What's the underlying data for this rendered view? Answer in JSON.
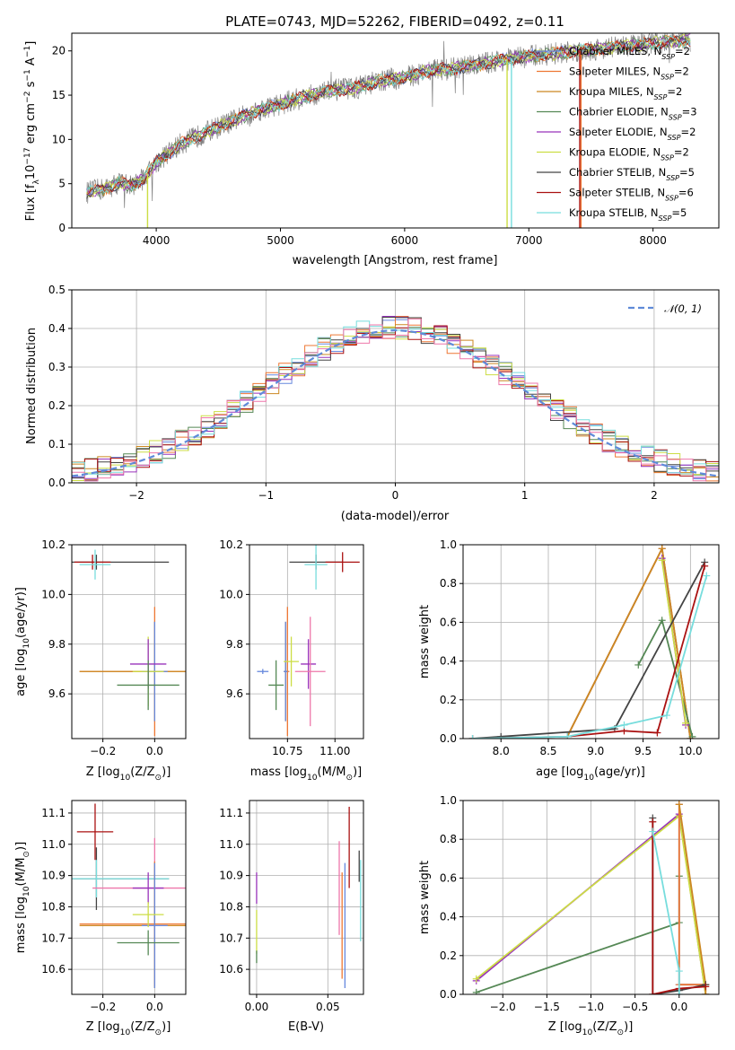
{
  "palette": {
    "Chabrier MILES": "#6688dd",
    "Salpeter MILES": "#ee7733",
    "Kroupa MILES": "#cc8822",
    "Chabrier ELODIE": "#558855",
    "Salpeter ELODIE": "#9933bb",
    "Kroupa ELODIE": "#ccdd44",
    "Chabrier STELIB": "#444444",
    "Salpeter STELIB": "#aa1111",
    "Kroupa STELIB": "#77dddd",
    "data": "#808080",
    "normal": "#5f8ad8",
    "pink": "#ee77aa"
  },
  "chart_data": [
    {
      "id": "spectrum",
      "type": "line",
      "title": "PLATE=0743, MJD=52262, FIBERID=0492, z=0.11",
      "xlabel": "wavelength [Angstrom, rest frame]",
      "ylabel_main": "Flux [f",
      "ylabel_sub": "λ",
      "ylabel_mid": "10",
      "ylabel_sup": "−17",
      "ylabel_rest": " erg cm",
      "ylabel_sup2": "−2",
      "ylabel_rest2": " s",
      "ylabel_sup3": "−1",
      "ylabel_rest3": " A",
      "ylabel_sup4": "−1",
      "ylabel_end": "]",
      "xlim": [
        3320,
        8530
      ],
      "ylim": [
        0,
        22
      ],
      "xticks": [
        4000,
        5000,
        6000,
        7000,
        8000
      ],
      "yticks": [
        0,
        5,
        10,
        15,
        20
      ],
      "continuum": [
        [
          3440,
          4.0
        ],
        [
          3600,
          4.5
        ],
        [
          3700,
          5.1
        ],
        [
          3800,
          4.8
        ],
        [
          3900,
          5.6
        ],
        [
          4000,
          7.4
        ],
        [
          4200,
          9.5
        ],
        [
          4400,
          10.8
        ],
        [
          4600,
          12.0
        ],
        [
          4800,
          13.2
        ],
        [
          5000,
          14.0
        ],
        [
          5200,
          14.8
        ],
        [
          5400,
          15.5
        ],
        [
          5600,
          15.8
        ],
        [
          5800,
          16.6
        ],
        [
          6000,
          17.0
        ],
        [
          6200,
          17.8
        ],
        [
          6400,
          18.0
        ],
        [
          6600,
          18.5
        ],
        [
          6800,
          19.0
        ],
        [
          7000,
          19.4
        ],
        [
          7200,
          19.7
        ],
        [
          7400,
          20.0
        ],
        [
          7600,
          20.3
        ],
        [
          7800,
          20.6
        ],
        [
          8000,
          20.9
        ],
        [
          8300,
          21.2
        ]
      ],
      "legend": [
        {
          "name": "Chabrier MILES",
          "ssp": "2"
        },
        {
          "name": "Salpeter MILES",
          "ssp": "2"
        },
        {
          "name": "Kroupa MILES",
          "ssp": "2"
        },
        {
          "name": "Chabrier ELODIE",
          "ssp": "3"
        },
        {
          "name": "Salpeter ELODIE",
          "ssp": "2"
        },
        {
          "name": "Kroupa ELODIE",
          "ssp": "2"
        },
        {
          "name": "Chabrier STELIB",
          "ssp": "5"
        },
        {
          "name": "Salpeter STELIB",
          "ssp": "6"
        },
        {
          "name": "Kroupa STELIB",
          "ssp": "5"
        }
      ],
      "legend_prefix": "N",
      "legend_sub": "SSP",
      "legend_placement": "upper-right"
    },
    {
      "id": "residuals",
      "type": "histogram",
      "xlabel": "(data-model)/error",
      "ylabel": "Normed distribution",
      "xlim": [
        -2.5,
        2.5
      ],
      "ylim": [
        0,
        0.5
      ],
      "xticks": [
        -2,
        -1,
        0,
        1,
        2
      ],
      "xticklabels": [
        "−2",
        "−1",
        "0",
        "1",
        "2"
      ],
      "yticks": [
        0.0,
        0.1,
        0.2,
        0.3,
        0.4,
        0.5
      ],
      "yticklabels": [
        "0.0",
        "0.1",
        "0.2",
        "0.3",
        "0.4",
        "0.5"
      ],
      "bin_width": 0.1,
      "bin_start": -2.5,
      "density_peak": 0.395,
      "density_sigma": 1.0,
      "legend": "𝒩(0, 1)",
      "grid": true
    },
    {
      "id": "age_vs_Z",
      "type": "errorbar",
      "xlabel": "Z [log",
      "xlabel_sub": "10",
      "xlabel_rest": "(Z/Z",
      "xlabel_sub2": "⊙",
      "xlabel_end": ")]",
      "ylabel": "age  [log",
      "ylabel_sub": "10",
      "ylabel_rest": "(age/yr)]",
      "xlim": [
        -0.32,
        0.12
      ],
      "ylim": [
        9.42,
        10.2
      ],
      "xticks": [
        -0.2,
        0.0
      ],
      "xticklabels": [
        "−0.2",
        "0.0"
      ],
      "yticks": [
        9.6,
        9.8,
        10.0,
        10.2
      ],
      "yticklabels": [
        "9.6",
        "9.8",
        "10.0",
        "10.2"
      ],
      "points": [
        {
          "series": "Chabrier STELIB",
          "x": -0.225,
          "xerr": 0.28,
          "y": 10.13,
          "yerr": 0.03
        },
        {
          "series": "Salpeter STELIB",
          "x": -0.24,
          "xerr": 0.07,
          "y": 10.13,
          "yerr": 0.03
        },
        {
          "series": "Kroupa STELIB",
          "x": -0.23,
          "xerr": 0.06,
          "y": 10.12,
          "yerr": 0.06
        },
        {
          "series": "Salpeter MILES",
          "x": 0.0,
          "xerr": 0.29,
          "y": 9.69,
          "yerr": 0.26
        },
        {
          "series": "Kroupa MILES",
          "x": 0.0,
          "xerr": 0.29,
          "y": 9.69,
          "yerr": 0.2
        },
        {
          "series": "Chabrier MILES",
          "x": 0.0,
          "xerr": 0.05,
          "y": 9.69,
          "yerr": 0.2
        },
        {
          "series": "Kroupa ELODIE",
          "x": -0.025,
          "xerr": 0.06,
          "y": 9.69,
          "yerr": 0.14
        },
        {
          "series": "Salpeter ELODIE",
          "x": -0.025,
          "xerr": 0.07,
          "y": 9.72,
          "yerr": 0.1
        },
        {
          "series": "Chabrier ELODIE",
          "x": -0.025,
          "xerr": 0.12,
          "y": 9.635,
          "yerr": 0.1
        }
      ]
    },
    {
      "id": "age_vs_mass",
      "type": "errorbar",
      "xlabel": "mass [log",
      "xlabel_sub": "10",
      "xlabel_rest": "(M/M",
      "xlabel_sub2": "⊙",
      "xlabel_end": ")]",
      "xlim": [
        10.55,
        11.15
      ],
      "ylim": [
        9.42,
        10.2
      ],
      "xticks": [
        10.75,
        11.0
      ],
      "xticklabels": [
        "10.75",
        "11.00"
      ],
      "yticks": [
        9.6,
        9.8,
        10.0,
        10.2
      ],
      "yticklabels": [
        "9.6",
        "9.8",
        "10.0",
        "10.2"
      ],
      "points": [
        {
          "series": "Chabrier STELIB",
          "x": 10.9,
          "xerr": 0.14,
          "y": 10.13,
          "yerr": 0.03
        },
        {
          "series": "Salpeter STELIB",
          "x": 11.04,
          "xerr": 0.09,
          "y": 10.13,
          "yerr": 0.04
        },
        {
          "series": "Kroupa STELIB",
          "x": 10.9,
          "xerr": 0.06,
          "y": 10.12,
          "yerr": 0.1
        },
        {
          "series": "Salpeter MILES",
          "x": 10.75,
          "xerr": 0.01,
          "y": 9.69,
          "yerr": 0.26
        },
        {
          "series": "Kroupa MILES",
          "x": 10.74,
          "xerr": 0.01,
          "y": 9.69,
          "yerr": 0.2
        },
        {
          "series": "Chabrier MILES",
          "x": 10.74,
          "xerr": 0.01,
          "y": 9.69,
          "yerr": 0.2
        },
        {
          "series": "Kroupa ELODIE",
          "x": 10.77,
          "xerr": 0.04,
          "y": 9.73,
          "yerr": 0.1
        },
        {
          "series": "Salpeter ELODIE",
          "x": 10.86,
          "xerr": 0.04,
          "y": 9.72,
          "yerr": 0.1
        },
        {
          "series": "Chabrier ELODIE",
          "x": 10.69,
          "xerr": 0.04,
          "y": 9.635,
          "yerr": 0.1
        },
        {
          "series": "pink",
          "x": 10.87,
          "xerr": 0.08,
          "y": 9.69,
          "yerr": 0.22
        },
        {
          "series": "Chabrier MILES",
          "x": 10.62,
          "xerr": 0.03,
          "y": 9.69,
          "yerr": 0.01
        }
      ]
    },
    {
      "id": "mass_weight_vs_age",
      "type": "line",
      "xlabel": "age  [log",
      "xlabel_sub": "10",
      "xlabel_rest": "(age/yr)]",
      "ylabel": "mass weight",
      "xlim": [
        7.6,
        10.3
      ],
      "ylim": [
        0,
        1
      ],
      "xticks": [
        8.0,
        8.5,
        9.0,
        9.5,
        10.0
      ],
      "xticklabels": [
        "8.0",
        "8.5",
        "9.0",
        "9.5",
        "10.0"
      ],
      "yticks": [
        0.0,
        0.2,
        0.4,
        0.6,
        0.8,
        1.0
      ],
      "yticklabels": [
        "0.0",
        "0.2",
        "0.4",
        "0.6",
        "0.8",
        "1.0"
      ],
      "grid": true,
      "series": [
        {
          "name": "Chabrier MILES",
          "x": [
            8.7,
            9.7,
            10.0
          ],
          "y": [
            0.01,
            0.98,
            0.0
          ]
        },
        {
          "name": "Salpeter MILES",
          "x": [
            8.7,
            9.7,
            10.0
          ],
          "y": [
            0.01,
            0.98,
            0.0
          ]
        },
        {
          "name": "Kroupa MILES",
          "x": [
            8.7,
            9.7,
            10.0
          ],
          "y": [
            0.01,
            0.98,
            0.0
          ]
        },
        {
          "name": "Chabrier ELODIE",
          "x": [
            9.45,
            9.7,
            10.02
          ],
          "y": [
            0.38,
            0.61,
            0.01
          ]
        },
        {
          "name": "Salpeter ELODIE",
          "x": [
            9.7,
            9.95
          ],
          "y": [
            0.93,
            0.07
          ]
        },
        {
          "name": "Kroupa ELODIE",
          "x": [
            9.7,
            9.95
          ],
          "y": [
            0.92,
            0.08
          ]
        },
        {
          "name": "Chabrier STELIB",
          "x": [
            7.7,
            8.0,
            9.2,
            10.15
          ],
          "y": [
            0.0,
            0.01,
            0.05,
            0.91
          ]
        },
        {
          "name": "Salpeter STELIB",
          "x": [
            7.7,
            8.7,
            9.3,
            9.65,
            10.15
          ],
          "y": [
            0.0,
            0.01,
            0.04,
            0.03,
            0.89
          ]
        },
        {
          "name": "Kroupa STELIB",
          "x": [
            7.7,
            8.7,
            9.3,
            9.75,
            10.17
          ],
          "y": [
            0.0,
            0.01,
            0.07,
            0.12,
            0.84
          ]
        }
      ]
    },
    {
      "id": "mass_vs_Z",
      "type": "errorbar",
      "xlabel": "Z [log",
      "xlabel_sub": "10",
      "xlabel_rest": "(Z/Z",
      "xlabel_sub2": "⊙",
      "xlabel_end": ")]",
      "ylabel": "mass [log",
      "ylabel_sub": "10",
      "ylabel_rest": "(M/M",
      "ylabel_sub2": "⊙",
      "ylabel_end": ")]",
      "xlim": [
        -0.32,
        0.12
      ],
      "ylim": [
        10.52,
        11.14
      ],
      "xticks": [
        -0.2,
        0.0
      ],
      "xticklabels": [
        "−0.2",
        "0.0"
      ],
      "yticks": [
        10.6,
        10.7,
        10.8,
        10.9,
        11.0,
        11.1
      ],
      "yticklabels": [
        "10.6",
        "10.7",
        "10.8",
        "10.9",
        "11.0",
        "11.1"
      ],
      "points": [
        {
          "series": "Salpeter STELIB",
          "x": -0.23,
          "xerr": 0.07,
          "y": 11.04,
          "yerr": 0.09
        },
        {
          "series": "Chabrier STELIB",
          "x": -0.225,
          "xerr": 0.28,
          "y": 10.89,
          "yerr": 0.1
        },
        {
          "series": "Kroupa STELIB",
          "x": -0.225,
          "xerr": 0.28,
          "y": 10.89,
          "yerr": 0.06
        },
        {
          "series": "pink",
          "x": 0.0,
          "xerr": 0.24,
          "y": 10.86,
          "yerr": 0.16
        },
        {
          "series": "Salpeter ELODIE",
          "x": -0.025,
          "xerr": 0.06,
          "y": 10.86,
          "yerr": 0.05
        },
        {
          "series": "Salpeter MILES",
          "x": 0.0,
          "xerr": 0.29,
          "y": 10.745,
          "yerr": 0.2
        },
        {
          "series": "Kroupa MILES",
          "x": 0.0,
          "xerr": 0.29,
          "y": 10.74,
          "yerr": 0.2
        },
        {
          "series": "Chabrier MILES",
          "x": 0.0,
          "xerr": 0.05,
          "y": 10.74,
          "yerr": 0.2
        },
        {
          "series": "Kroupa ELODIE",
          "x": -0.025,
          "xerr": 0.06,
          "y": 10.775,
          "yerr": 0.04
        },
        {
          "series": "Chabrier ELODIE",
          "x": -0.025,
          "xerr": 0.12,
          "y": 10.685,
          "yerr": 0.04
        }
      ]
    },
    {
      "id": "mass_vs_ebv",
      "type": "errorbar",
      "xlabel": "E(B-V)",
      "xlim": [
        -0.005,
        0.075
      ],
      "ylim": [
        10.52,
        11.14
      ],
      "xticks": [
        0.0,
        0.05
      ],
      "xticklabels": [
        "0.00",
        "0.05"
      ],
      "yticks": [
        10.6,
        10.7,
        10.8,
        10.9,
        11.0,
        11.1
      ],
      "yticklabels": [
        "10.6",
        "10.7",
        "10.8",
        "10.9",
        "11.0",
        "11.1"
      ],
      "points": [
        {
          "series": "Salpeter ELODIE",
          "x": 0.0,
          "xerr": 0.0,
          "y": 10.86,
          "yerr": 0.05
        },
        {
          "series": "Kroupa ELODIE",
          "x": 0.0,
          "xerr": 0.0,
          "y": 10.72,
          "yerr": 0.07
        },
        {
          "series": "Chabrier ELODIE",
          "x": 0.0,
          "xerr": 0.0,
          "y": 10.64,
          "yerr": 0.02
        },
        {
          "series": "pink",
          "x": 0.058,
          "xerr": 0.0,
          "y": 10.86,
          "yerr": 0.15
        },
        {
          "series": "Salpeter MILES",
          "x": 0.06,
          "xerr": 0.0,
          "y": 10.74,
          "yerr": 0.17
        },
        {
          "series": "Chabrier MILES",
          "x": 0.062,
          "xerr": 0.0,
          "y": 10.74,
          "yerr": 0.2
        },
        {
          "series": "Salpeter STELIB",
          "x": 0.065,
          "xerr": 0.0,
          "y": 10.99,
          "yerr": 0.13
        },
        {
          "series": "Chabrier STELIB",
          "x": 0.072,
          "xerr": 0.0,
          "y": 10.93,
          "yerr": 0.05
        },
        {
          "series": "Kroupa STELIB",
          "x": 0.073,
          "xerr": 0.0,
          "y": 10.82,
          "yerr": 0.13
        }
      ]
    },
    {
      "id": "mass_weight_vs_Z",
      "type": "line",
      "xlabel": "Z [log",
      "xlabel_sub": "10",
      "xlabel_rest": "(Z/Z",
      "xlabel_sub2": "⊙",
      "xlabel_end": ")]",
      "ylabel": "mass weight",
      "xlim": [
        -2.45,
        0.45
      ],
      "ylim": [
        0,
        1
      ],
      "xticks": [
        -2.0,
        -1.5,
        -1.0,
        -0.5,
        0.0
      ],
      "xticklabels": [
        "−2.0",
        "−1.5",
        "−1.0",
        "−0.5",
        "0.0"
      ],
      "yticks": [
        0.0,
        0.2,
        0.4,
        0.6,
        0.8,
        1.0
      ],
      "yticklabels": [
        "0.0",
        "0.2",
        "0.4",
        "0.6",
        "0.8",
        "1.0"
      ],
      "grid": true,
      "series": [
        {
          "name": "Salpeter ELODIE",
          "x": [
            -2.3,
            0.0,
            0.3
          ],
          "y": [
            0.07,
            0.93,
            0.0
          ]
        },
        {
          "name": "Kroupa ELODIE",
          "x": [
            -2.3,
            0.0,
            0.3
          ],
          "y": [
            0.08,
            0.92,
            0.0
          ]
        },
        {
          "name": "Chabrier ELODIE",
          "x": [
            -2.3,
            0.0,
            0.0
          ],
          "y": [
            0.01,
            0.37,
            0.61
          ]
        },
        {
          "name": "Chabrier MILES",
          "x": [
            0.0,
            0.0,
            0.3
          ],
          "y": [
            0.98,
            0.05,
            0.05
          ]
        },
        {
          "name": "Salpeter MILES",
          "x": [
            0.0,
            0.0,
            0.3
          ],
          "y": [
            0.98,
            0.05,
            0.05
          ]
        },
        {
          "name": "Kroupa MILES",
          "x": [
            0.0,
            0.3,
            0.3
          ],
          "y": [
            0.98,
            0.05,
            0.0
          ]
        },
        {
          "name": "Chabrier STELIB",
          "x": [
            -0.3,
            -0.3,
            0.0,
            0.3
          ],
          "y": [
            0.91,
            0.0,
            0.02,
            0.05
          ]
        },
        {
          "name": "Salpeter STELIB",
          "x": [
            -0.3,
            -0.3,
            0.0,
            0.3
          ],
          "y": [
            0.89,
            0.0,
            0.03,
            0.04
          ]
        },
        {
          "name": "Kroupa STELIB",
          "x": [
            -0.3,
            0.0,
            0.0
          ],
          "y": [
            0.84,
            0.12,
            0.0
          ]
        }
      ]
    }
  ]
}
